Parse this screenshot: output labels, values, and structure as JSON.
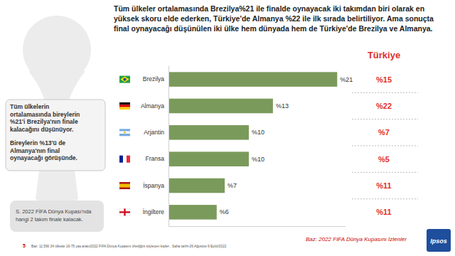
{
  "chart_data": {
    "type": "bar",
    "orientation": "horizontal",
    "title": "Tüm ülkeler ortalamasında Brezilya%21 ile finalde oynayacak iki takımdan biri olarak en yüksek skoru elde ederken, Türkiye'de Almanya %22 ile ilk sırada belirtiliyor. Ama sonuçta final oynayacağı düşünülen iki ülke hem dünyada hem de Türkiye'de Brezilya ve Almanya.",
    "categories": [
      "Brezilya",
      "Almanya",
      "Arjantin",
      "Fransa",
      "İspanya",
      "İngiltere"
    ],
    "values": [
      21,
      13,
      10,
      10,
      7,
      6
    ],
    "value_labels": [
      "%21",
      "%13",
      "%10",
      "%10",
      "%7",
      "%6"
    ],
    "data_labels": true,
    "color": "#7a9a5b",
    "xlim": [
      0,
      22
    ],
    "xticks": [],
    "tick_labels": "y",
    "grid": false,
    "turkey": {
      "title": "Türkiye",
      "values": [
        15,
        22,
        7,
        5,
        11,
        11
      ],
      "value_labels": [
        "%15",
        "%22",
        "%7",
        "%5",
        "%11",
        "%11"
      ]
    }
  },
  "page": {
    "note": [
      [
        "Tüm ülkelerin",
        "ortalamasında bireylerin",
        "%21'i Brezilya'nın finale",
        "kalacağını düşünüyor."
      ],
      [
        "Bireylerin %13'ü de",
        "Almanya'nın final",
        "oynayacağı görüşünde."
      ]
    ],
    "question": [
      "S. 2022 FİFA Dünya Kupası'nda",
      "hangi 2 takım finale kalacak."
    ],
    "page_number": "5",
    "source": "Baz: 11.590  34 ülkede 16-75 yaş arası/2022 FIFA Dünya Kupasını izlediğini söyleyen kişiler , Saha tarihi-26 Ağustos-9 Eylül/2022",
    "base": "Baz: 2022 FIFA Dünya Kupasını İzlenler",
    "logo": "Ipsos"
  }
}
